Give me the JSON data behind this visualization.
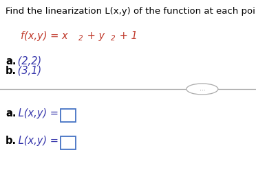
{
  "title": "Find the linearization L(x,y) of the function at each point.",
  "func_text": "f(x,y) = x$^{2}$ + y$^{2}$ + 1",
  "point_a_bold": "a.",
  "point_a_rest": " (2,2)",
  "point_b_bold": "b.",
  "point_b_rest": " (3,1)",
  "answer_a_bold": "a.",
  "answer_a_rest": " L(x,y) =",
  "answer_b_bold": "b.",
  "answer_b_rest": " L(x,y) =",
  "dots": "...",
  "bg_color": "#ffffff",
  "title_color": "#000000",
  "func_color": "#c0392b",
  "point_color": "#3333aa",
  "bold_color": "#000000",
  "answer_label_color": "#3333aa",
  "box_edge_color": "#4472c4",
  "separator_color": "#aaaaaa",
  "title_fontsize": 9.5,
  "func_fontsize": 10.5,
  "point_fontsize": 10.5,
  "answer_fontsize": 10.5,
  "fig_width": 3.72,
  "fig_height": 2.54,
  "dpi": 100
}
